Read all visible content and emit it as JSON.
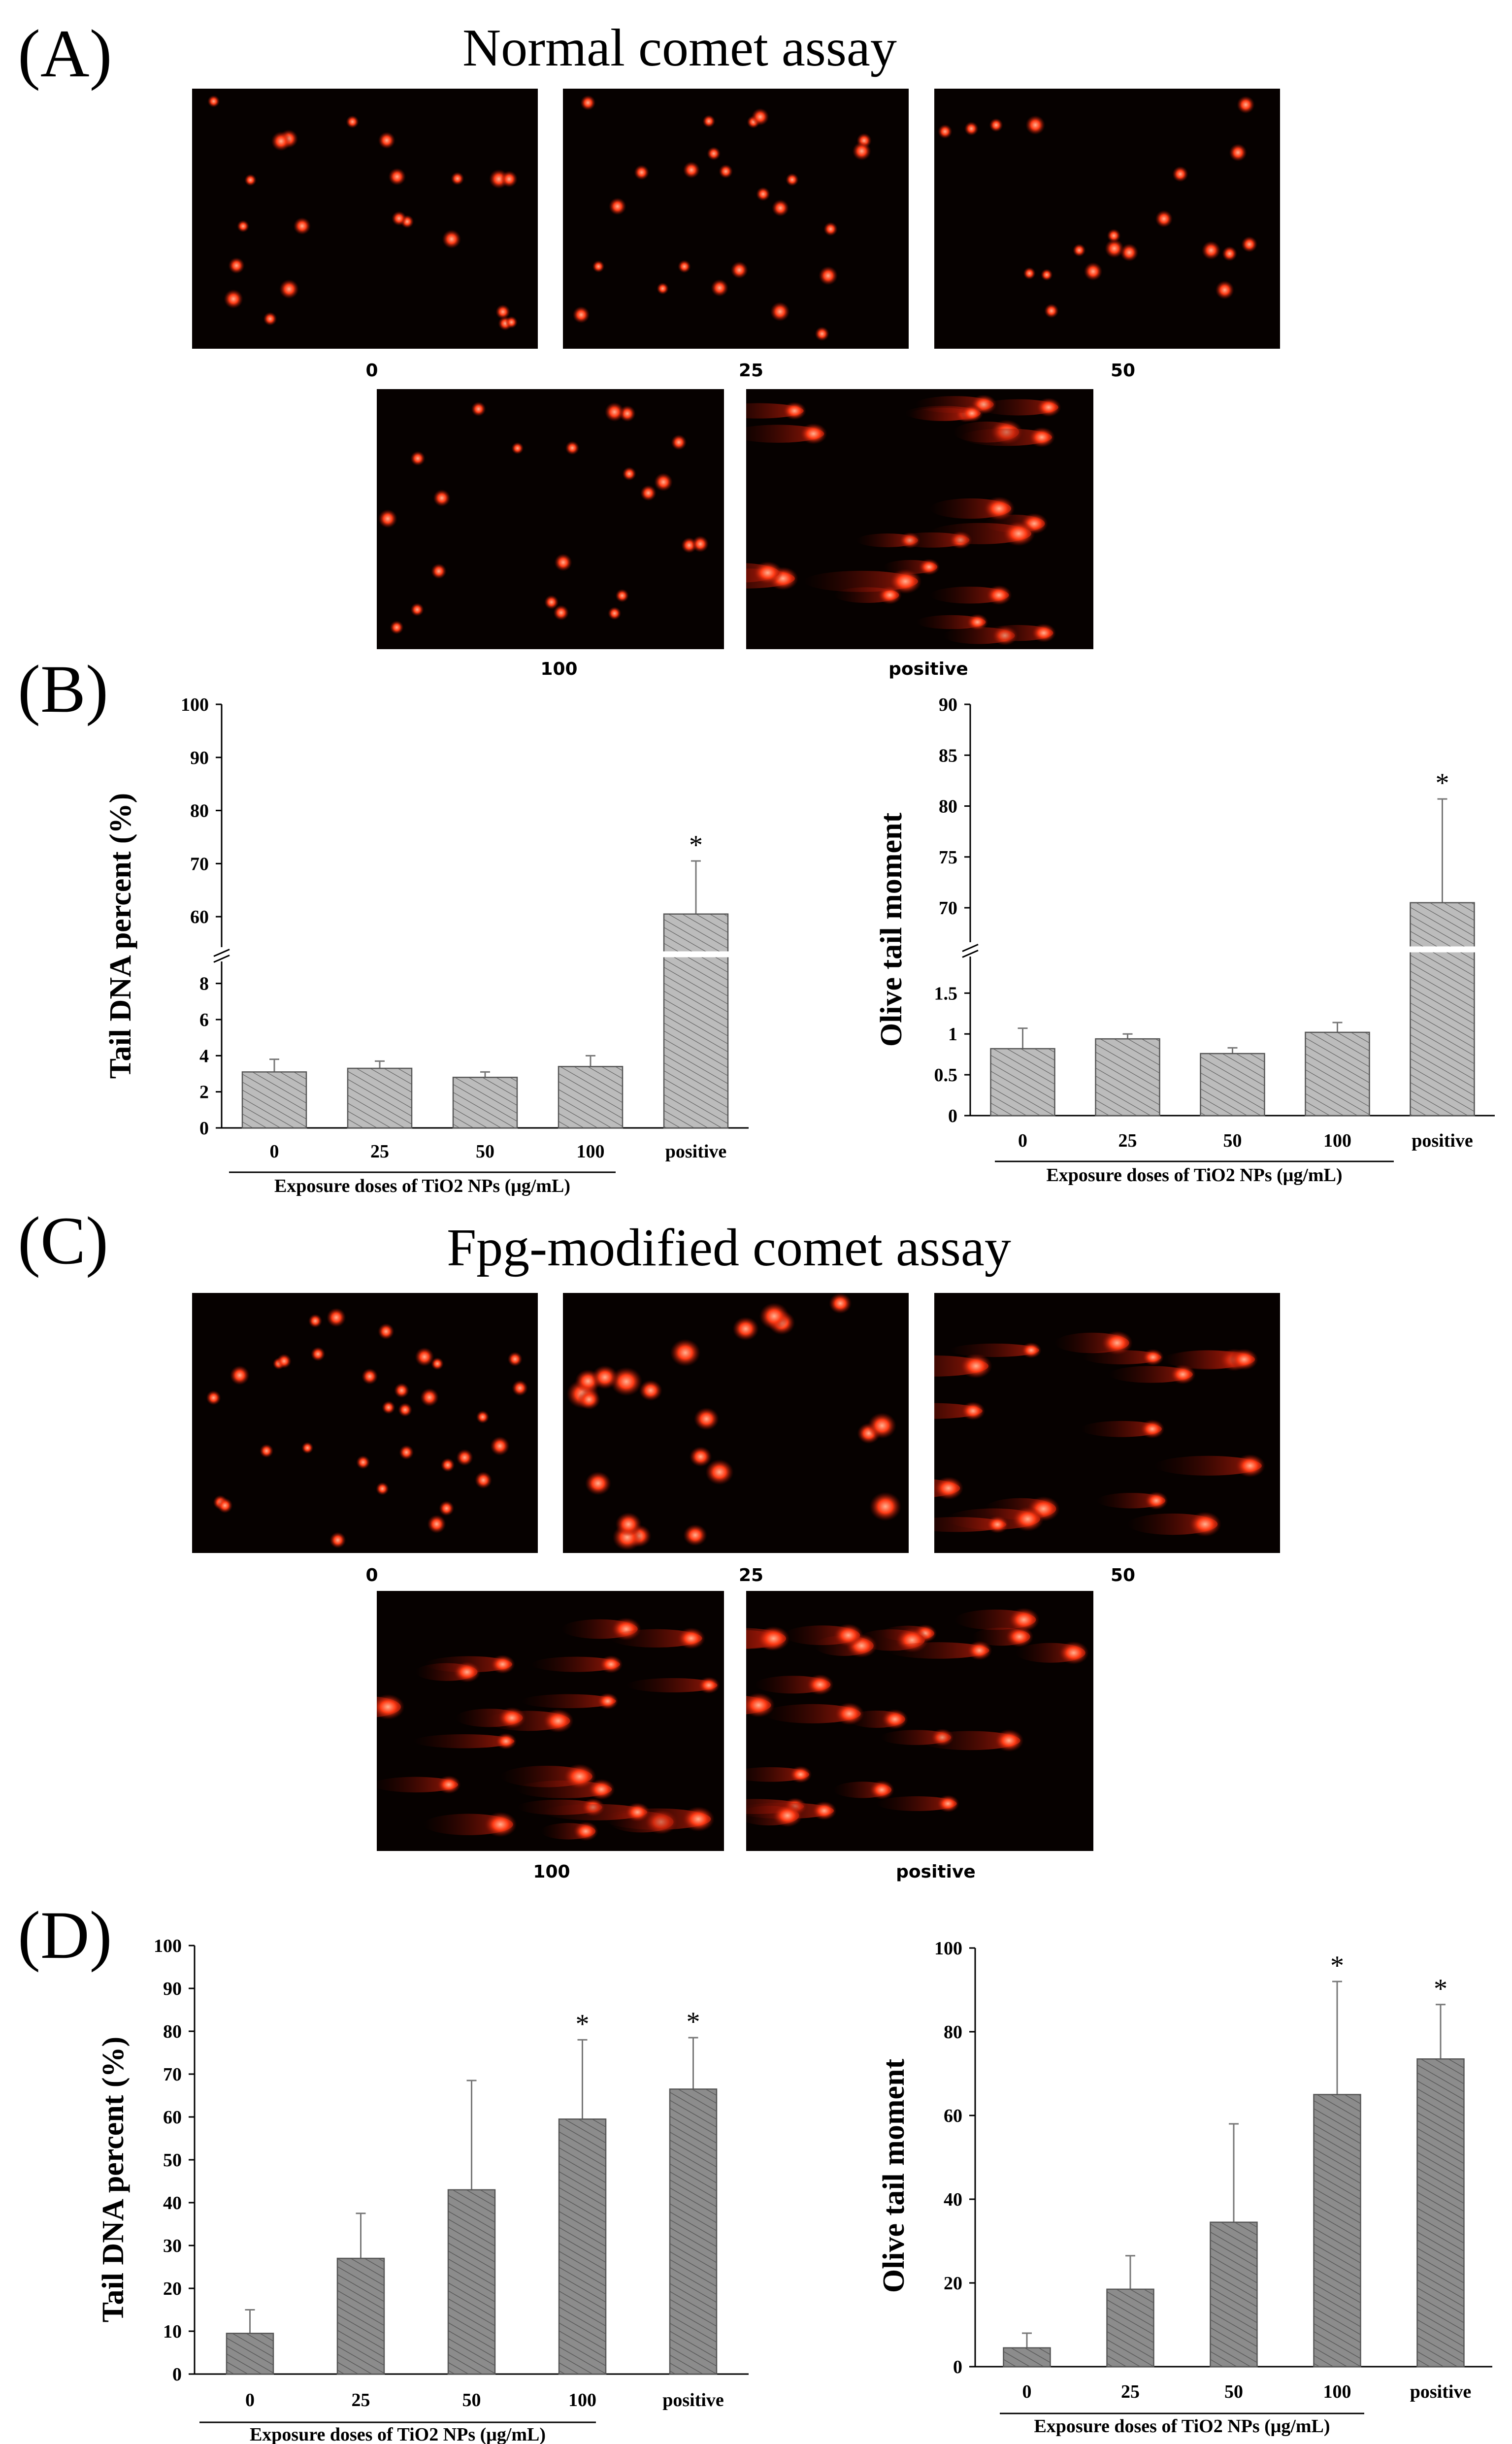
{
  "panels": {
    "A": {
      "letter": "(A)",
      "title": "Normal comet assay",
      "image_labels": [
        "0",
        "25",
        "50",
        "100",
        "positive"
      ]
    },
    "B": {
      "letter": "(B)"
    },
    "C": {
      "letter": "(C)",
      "title": "Fpg-modified comet assay",
      "image_labels": [
        "0",
        "25",
        "50",
        "100",
        "positive"
      ]
    },
    "D": {
      "letter": "(D)"
    }
  },
  "colors": {
    "image_background": "#060100",
    "comet": "#ff3a14",
    "bar_fill": "#bcbcbc",
    "bar_fill_dark": "#8c8c8c",
    "hatch": "#5a5a5a"
  },
  "chart_data": [
    {
      "id": "B-left",
      "type": "bar",
      "ylabel": "Tail DNA percent (%)",
      "xlabel": "Exposure doses of TiO2 NPs (μg/mL)",
      "categories": [
        "0",
        "25",
        "50",
        "100",
        "positive"
      ],
      "values": [
        3.1,
        3.3,
        2.8,
        3.4,
        60.5
      ],
      "errors": [
        0.7,
        0.4,
        0.3,
        0.6,
        10
      ],
      "significant": [
        false,
        false,
        false,
        false,
        true
      ],
      "broken_axis": true,
      "y_lower_ticks": [
        "0",
        "2",
        "4",
        "6",
        "8"
      ],
      "y_upper_ticks": [
        "60",
        "70",
        "80",
        "90",
        "100"
      ],
      "ylim_lower": [
        0,
        9
      ],
      "ylim_upper": [
        55,
        100
      ]
    },
    {
      "id": "B-right",
      "type": "bar",
      "ylabel": "Olive tail moment",
      "xlabel": "Exposure doses of TiO2 NPs (μg/mL)",
      "categories": [
        "0",
        "25",
        "50",
        "100",
        "positive"
      ],
      "values": [
        0.82,
        0.94,
        0.76,
        1.02,
        70.5
      ],
      "errors": [
        0.25,
        0.06,
        0.07,
        0.12,
        10.2
      ],
      "significant": [
        false,
        false,
        false,
        false,
        true
      ],
      "broken_axis": true,
      "y_lower_ticks": [
        "0",
        "0.5",
        "1",
        "1.5"
      ],
      "y_upper_ticks": [
        "70",
        "75",
        "80",
        "85",
        "90"
      ],
      "ylim_lower": [
        0,
        1.9
      ],
      "ylim_upper": [
        67,
        90
      ]
    },
    {
      "id": "D-left",
      "type": "bar",
      "ylabel": "Tail DNA percent (%)",
      "xlabel": "Exposure doses of TiO2 NPs (μg/mL)",
      "categories": [
        "0",
        "25",
        "50",
        "100",
        "positive"
      ],
      "values": [
        9.5,
        27,
        43,
        59.5,
        66.5
      ],
      "errors": [
        5.5,
        10.5,
        25.5,
        18.5,
        12
      ],
      "significant": [
        false,
        false,
        false,
        true,
        true
      ],
      "broken_axis": false,
      "y_ticks": [
        "0",
        "10",
        "20",
        "30",
        "40",
        "50",
        "60",
        "70",
        "80",
        "90",
        "100"
      ],
      "ylim": [
        0,
        100
      ]
    },
    {
      "id": "D-right",
      "type": "bar",
      "ylabel": "Olive tail moment",
      "xlabel": "Exposure doses of TiO2 NPs (μg/mL)",
      "categories": [
        "0",
        "25",
        "50",
        "100",
        "positive"
      ],
      "values": [
        4.5,
        18.5,
        34.5,
        65,
        73.5
      ],
      "errors": [
        3.5,
        8,
        23.5,
        27,
        13
      ],
      "significant": [
        false,
        false,
        false,
        true,
        true
      ],
      "broken_axis": false,
      "y_ticks": [
        "0",
        "20",
        "40",
        "60",
        "80",
        "100"
      ],
      "ylim": [
        0,
        100
      ]
    }
  ],
  "significance_marker": "*"
}
